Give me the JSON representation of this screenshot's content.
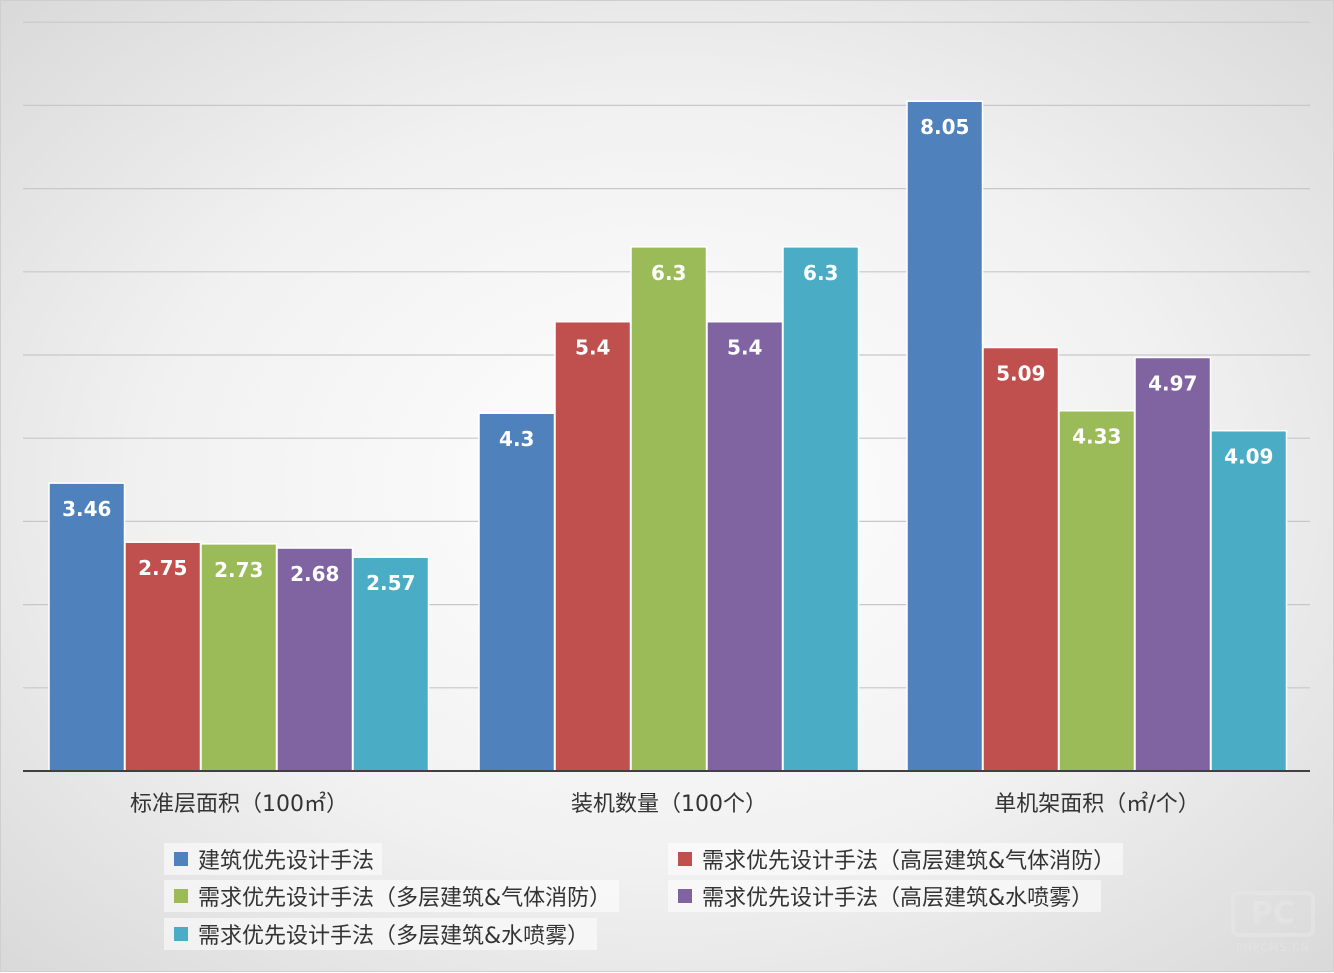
{
  "chart_data": {
    "type": "bar",
    "categories": [
      "标准层面积（100㎡）",
      "装机数量（100个）",
      "单机架面积（㎡/个）"
    ],
    "series": [
      {
        "name": "建筑优先设计手法",
        "values": [
          3.46,
          4.3,
          8.05
        ],
        "color": "#4f81bd",
        "labels": [
          "3.46",
          "4.3",
          "8.05"
        ]
      },
      {
        "name": "需求优先设计手法（高层建筑&气体消防）",
        "values": [
          2.75,
          5.4,
          5.09
        ],
        "color": "#c0504d",
        "labels": [
          "2.75",
          "5.4",
          "5.09"
        ]
      },
      {
        "name": "需求优先设计手法（多层建筑&气体消防）",
        "values": [
          2.73,
          6.3,
          4.33
        ],
        "color": "#9bbb59",
        "labels": [
          "2.73",
          "6.3",
          "4.33"
        ]
      },
      {
        "name": "需求优先设计手法（高层建筑&水喷雾）",
        "values": [
          2.68,
          5.4,
          4.97
        ],
        "color": "#8064a2",
        "labels": [
          "2.68",
          "5.4",
          "4.97"
        ]
      },
      {
        "name": "需求优先设计手法（多层建筑&水喷雾）",
        "values": [
          2.57,
          6.3,
          4.09
        ],
        "color": "#4bacc6",
        "labels": [
          "2.57",
          "6.3",
          "4.09"
        ]
      }
    ],
    "ylim": [
      0,
      9
    ],
    "gridlines": [
      1,
      2,
      3,
      4,
      5,
      6,
      7,
      8,
      9
    ],
    "grid": true,
    "y_axis_labels_shown": false,
    "legend_position": "bottom"
  },
  "watermark": {
    "mark": "PC",
    "text": "PHPCMS.CN"
  }
}
